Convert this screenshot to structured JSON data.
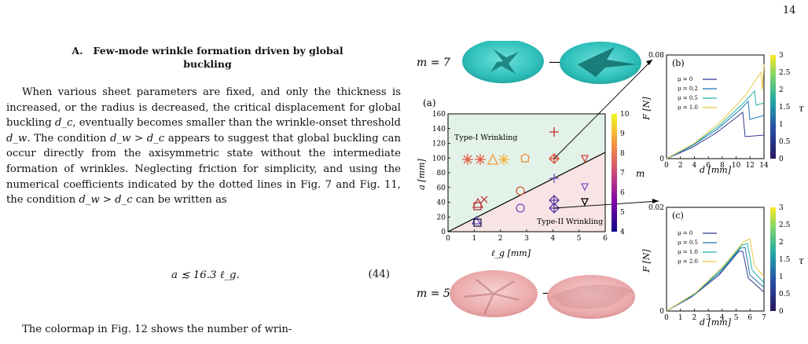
{
  "page_number": "14",
  "section": {
    "number": "A.",
    "title_line1": "Few-mode wrinkle formation driven by global",
    "title_line2": "buckling"
  },
  "paragraph1": {
    "s1": "When various sheet parameters are fixed, and only the thickness is increased, or the radius is decreased, the critical displacement for global buckling ",
    "s2": ", eventually becomes smaller than the wrinkle-onset threshold ",
    "s3": ". The condition ",
    "s4": " appears to suggest that global buckling can occur directly from the axisymmetric state without the intermediate formation of wrinkles. Neglecting friction for simplicity, and using the numerical coefficients indicated by the dotted lines in Fig. 7 and Fig. 11, the condition ",
    "s5": " can be written as",
    "dc": "d_c",
    "dw": "d_w",
    "cond": "d_w > d_c"
  },
  "equation": {
    "text": "a ≲ 16.3 ℓ_g.",
    "number": "(44)"
  },
  "paragraph2": {
    "text": "The colormap in Fig. 12 shows the number of wrin-"
  },
  "figure": {
    "m_top": "m = 7",
    "m_bottom": "m = 5",
    "arrow": "⟶",
    "panel_a": {
      "label": "(a)",
      "xlabel": "ℓ_g [mm]",
      "ylabel": "a [mm]",
      "region_top": "Type-I Wrinkling",
      "region_bottom": "Type-II Wrinkling",
      "colorbar_label": "m",
      "colorbar_ticks": [
        "4",
        "5",
        "6",
        "7",
        "8",
        "9",
        "10"
      ],
      "xticks": [
        "0",
        "1",
        "2",
        "3",
        "4",
        "5",
        "6"
      ],
      "yticks": [
        "0",
        "20",
        "40",
        "60",
        "80",
        "100",
        "120",
        "140",
        "160"
      ]
    },
    "panel_b": {
      "label": "(b)",
      "xlabel": "d [mm]",
      "ylabel": "F [N]",
      "xticks": [
        "0",
        "2",
        "4",
        "6",
        "8",
        "10",
        "12",
        "14"
      ],
      "yticks": [
        "0",
        "0.08"
      ],
      "legend": [
        "μ = 0",
        "μ = 0.2",
        "μ = 0.5",
        "μ = 1.0"
      ],
      "colorbar_label": "τ",
      "colorbar_ticks": [
        "0",
        "0.5",
        "1",
        "1.5",
        "2",
        "2.5",
        "3"
      ]
    },
    "panel_c": {
      "label": "(c)",
      "xlabel": "d [mm]",
      "ylabel": "F [N]",
      "xticks": [
        "0",
        "1",
        "2",
        "3",
        "4",
        "5",
        "6",
        "7"
      ],
      "yticks": [
        "0",
        "0.02"
      ],
      "legend": [
        "μ = 0",
        "μ = 0.5",
        "μ = 1.0",
        "μ = 2.0"
      ],
      "colorbar_label": "τ",
      "colorbar_ticks": [
        "0",
        "0.5",
        "1",
        "1.5",
        "2",
        "2.5",
        "3"
      ]
    },
    "series_colors": {
      "c0": "#2f3a8f",
      "c1": "#1f78b4",
      "c2": "#20b2aa",
      "c3": "#e8c840"
    }
  }
}
